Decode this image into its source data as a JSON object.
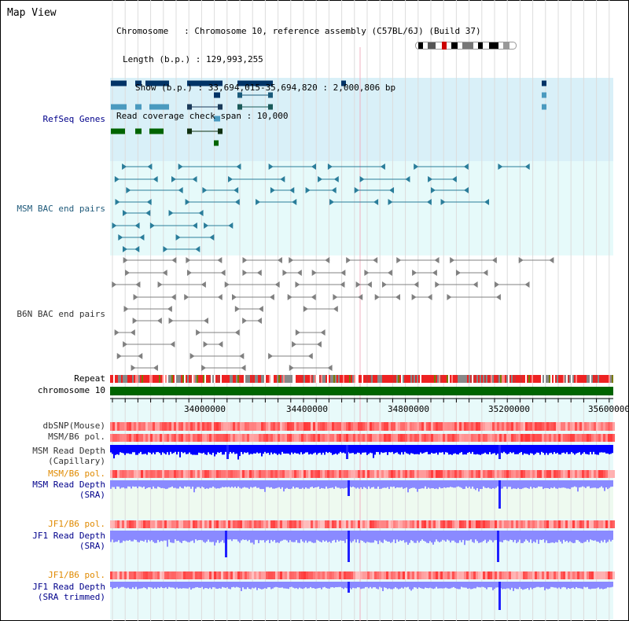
{
  "title": "Map View",
  "info": {
    "chromosome": "Chromosome   : Chromosome 10, reference assembly (C57BL/6J) (Build 37)",
    "length": "Length (b.p.) : 129,993,255",
    "show": "Show (b.p.) : 33,694,015-35,694,820 : 2,000,806 bp",
    "coverage": "Read coverage check span : 10,000"
  },
  "tracks": {
    "refseq": "RefSeq Genes",
    "msm_bac": "MSM BAC end pairs",
    "b6n_bac": "B6N BAC end pairs",
    "repeat": "Repeat",
    "chromosome": "chromosome 10",
    "dbsnp": "dbSNP(Mouse)",
    "msm_pol1": "MSM/B6 pol.",
    "msm_depth_cap_1": "MSM Read Depth",
    "msm_depth_cap_2": "(Capillary)",
    "msm_pol2": "MSM/B6 pol.",
    "msm_depth_sra_1": "MSM Read Depth",
    "msm_depth_sra_2": "(SRA)",
    "jf1_pol1": "JF1/B6 pol.",
    "jf1_depth_sra_1": "JF1 Read Depth",
    "jf1_depth_sra_2": "(SRA)",
    "jf1_pol2": "JF1/B6 pol.",
    "jf1_depth_trim_1": "JF1 Read Depth",
    "jf1_depth_trim_2": "(SRA trimmed)"
  },
  "axis": {
    "ticks": [
      "34000000",
      "34400000",
      "34800000",
      "35200000",
      "35600000"
    ]
  },
  "colors": {
    "refseq_bg": "#d9f0f8",
    "bac_bg": "#e6fafa",
    "refseq_dark": "#003366",
    "refseq_mid": "#4a9abf",
    "refseq_green": "#006400",
    "msm_feature": "#2a7d9a",
    "b6n_feature": "#808080",
    "chromosome": "#006400",
    "depth_blue": "#0000ff",
    "depth_light": "#8a8aff",
    "pol_red": "#ff5555"
  }
}
